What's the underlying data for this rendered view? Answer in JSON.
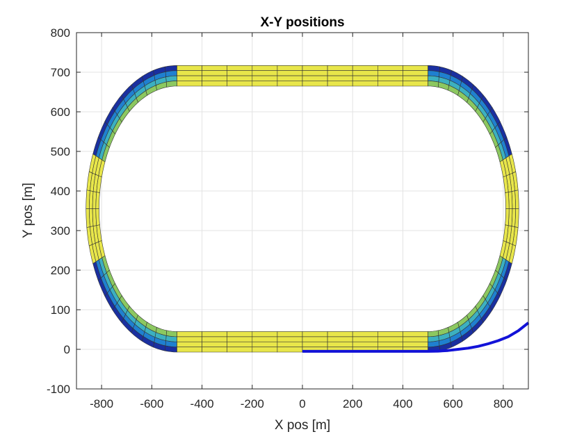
{
  "chart_data": {
    "type": "line",
    "title": "X-Y positions",
    "xlabel": "X pos [m]",
    "ylabel": "Y pos [m]",
    "xlim": [
      -900,
      900
    ],
    "ylim": [
      -100,
      800
    ],
    "xticks": [
      -800,
      -600,
      -400,
      -200,
      0,
      200,
      400,
      600,
      800
    ],
    "yticks": [
      -100,
      0,
      100,
      200,
      300,
      400,
      500,
      600,
      700,
      800
    ],
    "grid": true,
    "track": {
      "straight_half_length": 500,
      "center_y": 355,
      "outer_radius": 362,
      "lane_width": 13,
      "lanes": 4,
      "straight_color": "#e8e64a",
      "curve_colors": [
        "#1a2fa0",
        "#1f80d0",
        "#3cb0c0",
        "#8cc860"
      ],
      "outline_color": "#333333"
    },
    "series": [
      {
        "color": "#1212d8",
        "x": [
          0,
          100,
          200,
          300,
          400,
          500,
          540,
          580,
          620,
          660,
          700,
          740,
          780,
          820,
          860,
          900
        ],
        "y": [
          -5,
          -5,
          -5,
          -5,
          -5,
          -5,
          -4.5,
          -3,
          0,
          3,
          7.5,
          14,
          22,
          32,
          47,
          67
        ]
      }
    ]
  }
}
